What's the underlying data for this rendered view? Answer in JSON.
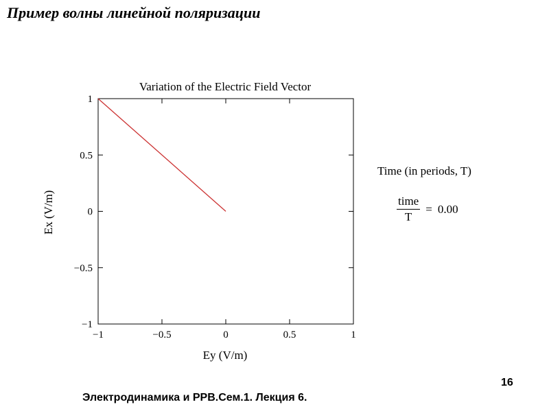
{
  "slide": {
    "title": "Пример волны линейной поляризации",
    "page_number": "16",
    "footer": "Электродинамика и РРВ.Сем.1. Лекция 6."
  },
  "side_panel": {
    "caption": "Time (in periods, T)",
    "numerator": "time",
    "denominator": "T",
    "equals": "=",
    "value": "0.00"
  },
  "chart_data": {
    "type": "line",
    "title": "Variation of the Electric Field Vector",
    "xlabel": "Ey (V/m)",
    "ylabel": "Ex (V/m)",
    "xlim": [
      -1,
      1
    ],
    "ylim": [
      -1,
      1
    ],
    "x_ticks": [
      -1,
      -0.5,
      0,
      0.5,
      1
    ],
    "y_ticks": [
      -1,
      -0.5,
      0,
      0.5,
      1
    ],
    "x_tick_labels": [
      "−1",
      "−0.5",
      "0",
      "0.5",
      "1"
    ],
    "y_tick_labels": [
      "−1",
      "−0.5",
      "0",
      "0.5",
      "1"
    ],
    "grid": false,
    "line_color": "#cc3333",
    "series": [
      {
        "x": [
          -1,
          0
        ],
        "y": [
          1,
          0
        ]
      }
    ]
  }
}
